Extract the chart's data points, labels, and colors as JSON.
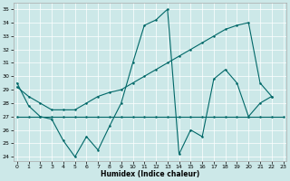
{
  "xlabel": "Humidex (Indice chaleur)",
  "bg_color": "#cce8e8",
  "line_color": "#006868",
  "xlim": [
    -0.3,
    23.3
  ],
  "ylim": [
    23.7,
    35.5
  ],
  "yticks": [
    24,
    25,
    26,
    27,
    28,
    29,
    30,
    31,
    32,
    33,
    34,
    35
  ],
  "xticks": [
    0,
    1,
    2,
    3,
    4,
    5,
    6,
    7,
    8,
    9,
    10,
    11,
    12,
    13,
    14,
    15,
    16,
    17,
    18,
    19,
    20,
    21,
    22,
    23
  ],
  "series1_x": [
    0,
    1,
    2,
    3,
    4,
    5,
    6,
    7,
    8,
    9,
    10,
    11,
    12,
    13,
    14,
    15,
    16,
    17,
    18,
    19,
    20,
    21,
    22
  ],
  "series1_y": [
    29.5,
    27.8,
    27.0,
    26.8,
    25.2,
    24.0,
    25.5,
    24.5,
    26.3,
    28.0,
    31.0,
    33.8,
    34.2,
    35.0,
    24.2,
    26.0,
    25.5,
    29.8,
    30.5,
    29.5,
    27.0,
    28.0,
    28.5
  ],
  "series2_x": [
    0,
    1,
    2,
    3,
    4,
    5,
    6,
    7,
    8,
    9,
    10,
    11,
    12,
    13,
    14,
    15,
    16,
    17,
    18,
    19,
    20,
    21,
    22,
    23
  ],
  "series2_y": [
    27.0,
    27.0,
    27.0,
    27.0,
    27.0,
    27.0,
    27.0,
    27.0,
    27.0,
    27.0,
    27.0,
    27.0,
    27.0,
    27.0,
    27.0,
    27.0,
    27.0,
    27.0,
    27.0,
    27.0,
    27.0,
    27.0,
    27.0,
    27.0
  ],
  "series3_x": [
    0,
    1,
    2,
    3,
    4,
    5,
    6,
    7,
    8,
    9,
    10,
    11,
    12,
    13,
    14,
    15,
    16,
    17,
    18,
    19,
    20,
    21,
    22
  ],
  "series3_y": [
    29.2,
    28.5,
    28.0,
    27.5,
    27.5,
    27.5,
    28.0,
    28.5,
    28.8,
    29.0,
    29.5,
    30.0,
    30.5,
    31.0,
    31.5,
    32.0,
    32.5,
    33.0,
    33.5,
    33.8,
    34.0,
    29.5,
    28.5
  ]
}
